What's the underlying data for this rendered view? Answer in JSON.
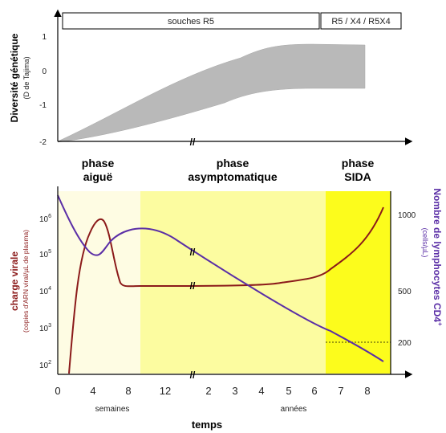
{
  "top_panel": {
    "y_axis_title": "Diversité génétique",
    "y_axis_subtitle": "(D de Tajima)",
    "y_ticks": [
      "1",
      "0",
      "-1",
      "-2"
    ],
    "band_r5_label": "souches R5",
    "band_mixed_label": "R5 / X4 / R5X4",
    "fill_color": "#b9b9b9"
  },
  "phases": {
    "acute": [
      "phase",
      "aiguë"
    ],
    "asymptomatic": [
      "phase",
      "asymptomatique"
    ],
    "aids": [
      "phase",
      "SIDA"
    ]
  },
  "bottom_panel": {
    "left_axis_title": "charge virale",
    "left_axis_subtitle": "(copies d'ARN viral/µL de plasma)",
    "left_ticks": [
      "10",
      "10",
      "10",
      "10",
      "10"
    ],
    "left_tick_exponents": [
      "6",
      "5",
      "4",
      "3",
      "2"
    ],
    "right_axis_title": "Nombre de lymphocytes CD4",
    "right_axis_title_sup": "+",
    "right_axis_subtitle": "(cells/µL)",
    "right_ticks": [
      "1000",
      "500",
      "200"
    ],
    "x_ticks": [
      "0",
      "4",
      "8",
      "12",
      "2",
      "3",
      "4",
      "5",
      "6",
      "7",
      "8"
    ],
    "x_unit_weeks": "semaines",
    "x_unit_years": "années",
    "x_axis_title": "temps",
    "colors": {
      "viral_load": "#8b1a1a",
      "cd4": "#5a2ea6",
      "acute_bg": "#fefce3",
      "asymptomatic_bg": "#fcfca0",
      "aids_bg": "#fcfc1c"
    }
  }
}
